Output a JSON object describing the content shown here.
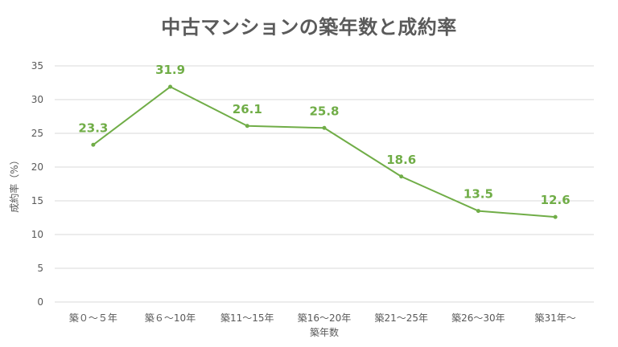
{
  "chart_data": {
    "type": "line",
    "title": "中古マンションの築年数と成約率",
    "xlabel": "築年数",
    "ylabel": "成約率（%）",
    "categories": [
      "築０～５年",
      "築６～10年",
      "築11～15年",
      "築16～20年",
      "築21～25年",
      "築26～30年",
      "築31年～"
    ],
    "series": [
      {
        "name": "成約率",
        "values": [
          23.3,
          31.9,
          26.1,
          25.8,
          18.6,
          13.5,
          12.6
        ],
        "labels": [
          "23.3",
          "31.9",
          "26.1",
          "25.8",
          "18.6",
          "13.5",
          "12.6"
        ]
      }
    ],
    "ylim": [
      0,
      35
    ],
    "yticks": [
      0,
      5,
      10,
      15,
      20,
      25,
      30,
      35
    ],
    "grid": true,
    "colors": {
      "line": "#70ad47",
      "grid": "#d9d9d9",
      "title": "#5a5a5a",
      "axis_text": "#595959"
    }
  }
}
